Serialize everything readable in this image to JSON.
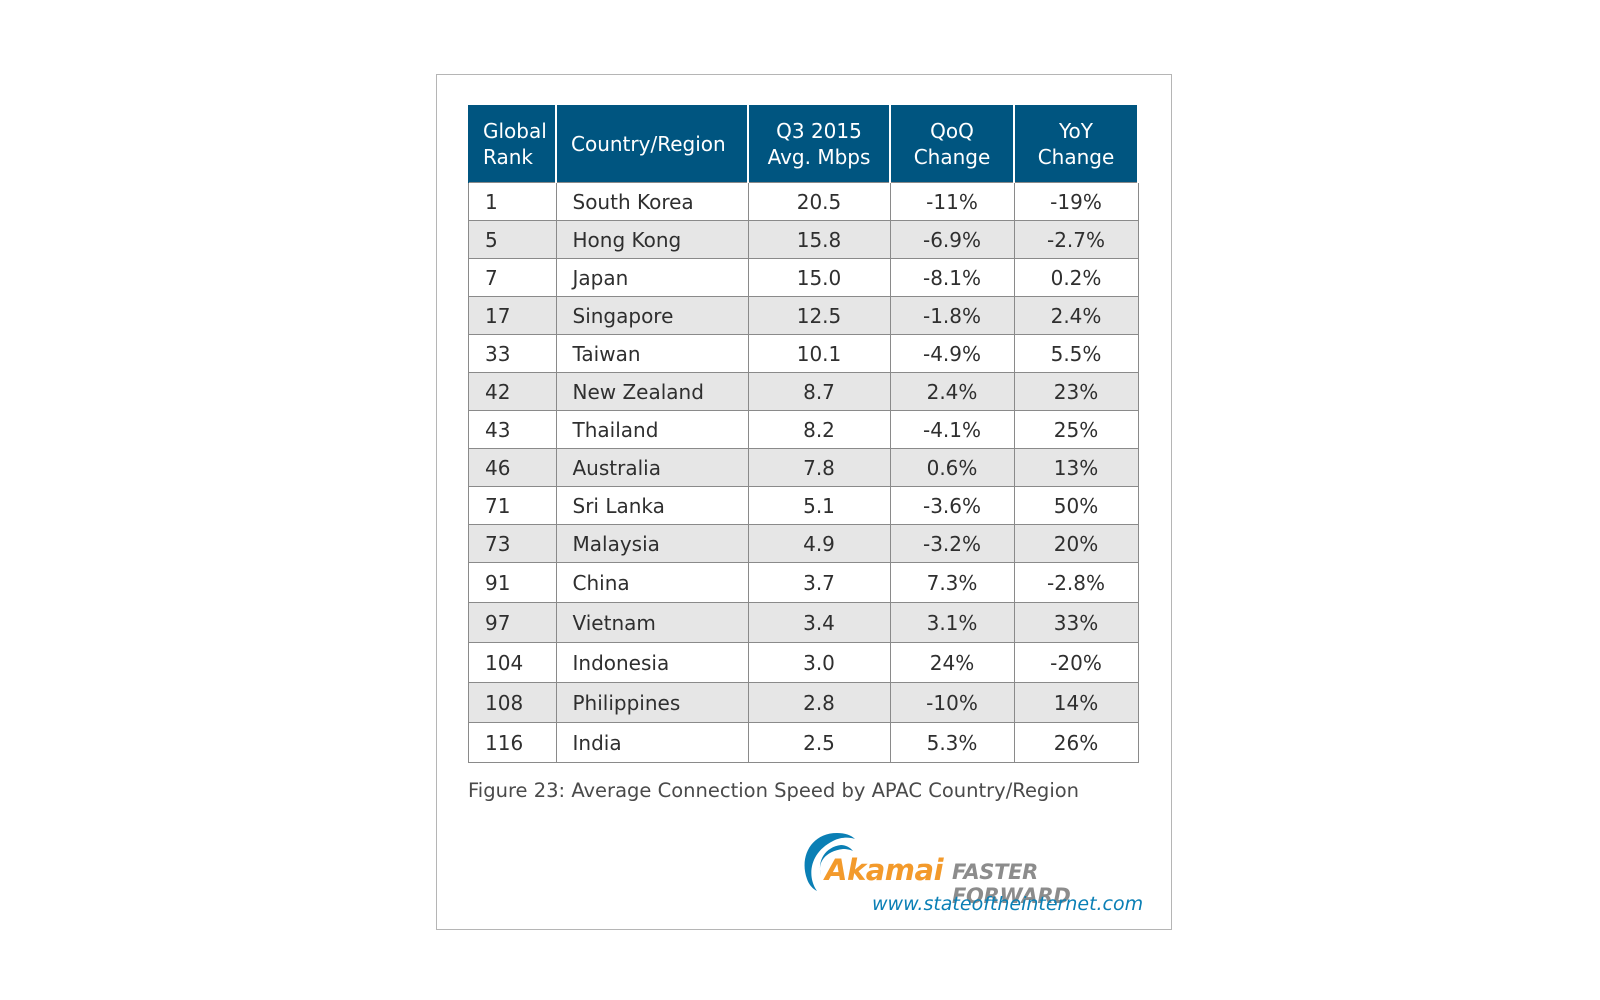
{
  "chart_data": {
    "type": "table",
    "columns": [
      "Global\nRank",
      "Country/Region",
      "Q3 2015\nAvg. Mbps",
      "QoQ\nChange",
      "YoY\nChange"
    ],
    "rows": [
      [
        "1",
        "South Korea",
        "20.5",
        "-11%",
        "-19%"
      ],
      [
        "5",
        "Hong Kong",
        "15.8",
        "-6.9%",
        "-2.7%"
      ],
      [
        "7",
        "Japan",
        "15.0",
        "-8.1%",
        "0.2%"
      ],
      [
        "17",
        "Singapore",
        "12.5",
        "-1.8%",
        "2.4%"
      ],
      [
        "33",
        "Taiwan",
        "10.1",
        "-4.9%",
        "5.5%"
      ],
      [
        "42",
        "New Zealand",
        "8.7",
        "2.4%",
        "23%"
      ],
      [
        "43",
        "Thailand",
        "8.2",
        "-4.1%",
        "25%"
      ],
      [
        "46",
        "Australia",
        "7.8",
        "0.6%",
        "13%"
      ],
      [
        "71",
        "Sri Lanka",
        "5.1",
        "-3.6%",
        "50%"
      ],
      [
        "73",
        "Malaysia",
        "4.9",
        "-3.2%",
        "20%"
      ],
      [
        "91",
        "China",
        "3.7",
        "7.3%",
        "-2.8%"
      ],
      [
        "97",
        "Vietnam",
        "3.4",
        "3.1%",
        "33%"
      ],
      [
        "104",
        "Indonesia",
        "3.0",
        "24%",
        "-20%"
      ],
      [
        "108",
        "Philippines",
        "2.8",
        "-10%",
        "14%"
      ],
      [
        "116",
        "India",
        "2.5",
        "5.3%",
        "26%"
      ]
    ],
    "caption": "Figure 23: Average Connection Speed by APAC Country/Region"
  },
  "branding": {
    "logo_text": "Akamai",
    "tagline": "FASTER FORWARD",
    "url": "www.stateoftheinternet.com"
  },
  "colors": {
    "header_bg": "#005580",
    "alt_row_bg": "#e6e6e6",
    "logo_orange": "#f39a2b",
    "logo_blue": "#0a7fb5"
  }
}
